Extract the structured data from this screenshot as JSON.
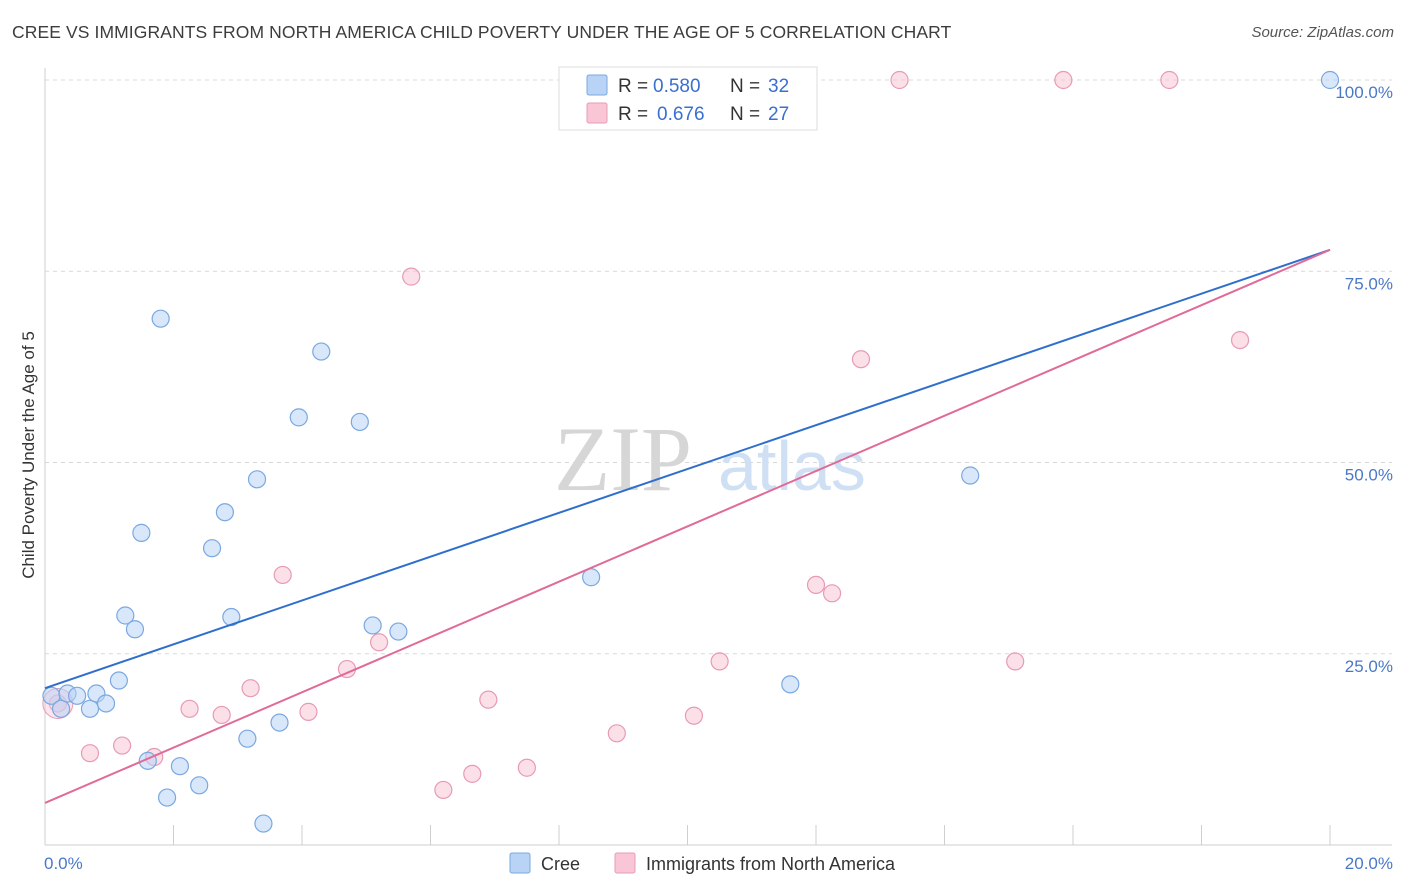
{
  "title": "CREE VS IMMIGRANTS FROM NORTH AMERICA CHILD POVERTY UNDER THE AGE OF 5 CORRELATION CHART",
  "source": "Source: ZipAtlas.com",
  "watermark": {
    "zip": "ZIP",
    "atlas": "atlas"
  },
  "legend_top": [
    {
      "r_label": "R =",
      "r_value": "0.580",
      "n_label": "N =",
      "n_value": "32"
    },
    {
      "r_label": "R =",
      "r_value": "0.676",
      "n_label": "N =",
      "n_value": "27"
    }
  ],
  "legend_bottom": [
    "Cree",
    "Immigrants from North America"
  ],
  "colors": {
    "cree_fill": "#b8d3f5",
    "cree_stroke": "#7aa8e0",
    "cree_line": "#2f6fcc",
    "imm_fill": "#f9c6d6",
    "imm_stroke": "#e89ab5",
    "imm_line": "#e06a98",
    "tick_text": "#4a78c8",
    "grid": "#d8d8d8"
  },
  "chart_data": {
    "type": "scatter",
    "title": "CREE VS IMMIGRANTS FROM NORTH AMERICA CHILD POVERTY UNDER THE AGE OF 5 CORRELATION CHART",
    "xlabel": "",
    "ylabel": "Child Poverty Under the Age of 5",
    "xlim": [
      0,
      20
    ],
    "ylim": [
      0,
      100
    ],
    "x_tick_labels": [
      "0.0%",
      "20.0%"
    ],
    "y_tick_values": [
      25,
      50,
      75,
      100
    ],
    "y_tick_labels": [
      "25.0%",
      "50.0%",
      "75.0%",
      "100.0%"
    ],
    "grid": true,
    "legend_position": "top-center",
    "series": [
      {
        "name": "Cree",
        "r": 0.58,
        "n": 32,
        "trend": {
          "x": [
            0,
            20
          ],
          "y": [
            20.5,
            77.8
          ]
        },
        "points": [
          [
            0.1,
            19.5
          ],
          [
            0.25,
            17.8
          ],
          [
            0.35,
            19.8
          ],
          [
            0.5,
            19.5
          ],
          [
            0.7,
            17.8
          ],
          [
            0.8,
            19.8
          ],
          [
            0.95,
            18.5
          ],
          [
            1.15,
            21.5
          ],
          [
            1.25,
            30.0
          ],
          [
            1.4,
            28.2
          ],
          [
            1.5,
            40.8
          ],
          [
            1.6,
            11.0
          ],
          [
            1.8,
            68.8
          ],
          [
            1.9,
            6.2
          ],
          [
            2.1,
            10.3
          ],
          [
            2.4,
            7.8
          ],
          [
            2.6,
            38.8
          ],
          [
            2.8,
            43.5
          ],
          [
            2.9,
            29.8
          ],
          [
            3.15,
            13.9
          ],
          [
            3.3,
            47.8
          ],
          [
            3.4,
            2.8
          ],
          [
            3.65,
            16.0
          ],
          [
            3.95,
            55.9
          ],
          [
            4.3,
            64.5
          ],
          [
            4.9,
            55.3
          ],
          [
            5.1,
            28.7
          ],
          [
            5.5,
            27.9
          ],
          [
            8.5,
            35.0
          ],
          [
            11.6,
            21.0
          ],
          [
            14.4,
            48.3
          ],
          [
            20.0,
            100.0
          ]
        ]
      },
      {
        "name": "Immigrants from North America",
        "r": 0.676,
        "n": 27,
        "trend": {
          "x": [
            0,
            20
          ],
          "y": [
            5.5,
            77.8
          ]
        },
        "points": [
          [
            0.2,
            18.5
          ],
          [
            0.7,
            12.0
          ],
          [
            1.2,
            13.0
          ],
          [
            1.7,
            11.5
          ],
          [
            2.25,
            17.8
          ],
          [
            2.75,
            17.0
          ],
          [
            3.2,
            20.5
          ],
          [
            3.7,
            35.3
          ],
          [
            4.1,
            17.4
          ],
          [
            4.7,
            23.0
          ],
          [
            5.2,
            26.5
          ],
          [
            5.7,
            74.3
          ],
          [
            6.2,
            7.2
          ],
          [
            6.65,
            9.3
          ],
          [
            6.9,
            19.0
          ],
          [
            7.5,
            10.1
          ],
          [
            8.9,
            14.6
          ],
          [
            10.1,
            16.9
          ],
          [
            10.5,
            24.0
          ],
          [
            12.0,
            34.0
          ],
          [
            12.25,
            32.9
          ],
          [
            12.7,
            63.5
          ],
          [
            13.3,
            100.0
          ],
          [
            15.1,
            24.0
          ],
          [
            15.85,
            100.0
          ],
          [
            17.5,
            100.0
          ],
          [
            18.6,
            66.0
          ]
        ]
      }
    ]
  }
}
